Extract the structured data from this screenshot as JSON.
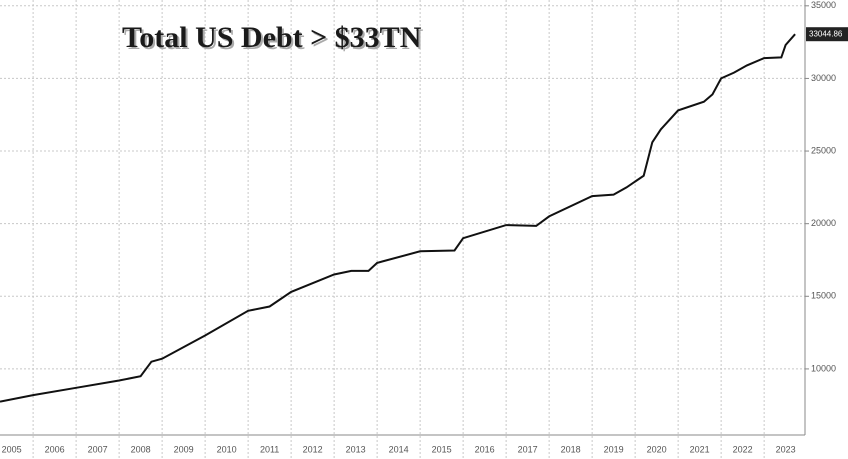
{
  "chart_data": {
    "type": "line",
    "title": "Total US Debt > $33TN",
    "x": [
      2005.23,
      2006.0,
      2007.0,
      2008.0,
      2008.5,
      2008.75,
      2009.0,
      2010.0,
      2011.0,
      2011.5,
      2012.0,
      2013.0,
      2013.4,
      2013.8,
      2014.0,
      2015.0,
      2015.8,
      2016.0,
      2017.0,
      2017.7,
      2018.0,
      2019.0,
      2019.5,
      2019.8,
      2020.2,
      2020.4,
      2020.6,
      2021.0,
      2021.6,
      2021.8,
      2022.0,
      2022.3,
      2022.6,
      2023.0,
      2023.4,
      2023.5,
      2023.72
    ],
    "values": [
      7750,
      8200,
      8700,
      9200,
      9500,
      10500,
      10700,
      12300,
      14000,
      14300,
      15300,
      16500,
      16750,
      16750,
      17300,
      18100,
      18150,
      19000,
      19900,
      19850,
      20500,
      21900,
      22000,
      22500,
      23300,
      25600,
      26500,
      27800,
      28400,
      28900,
      30000,
      30400,
      30900,
      31400,
      31450,
      32300,
      33044.86
    ],
    "color": "#111111",
    "xlim": [
      2005.23,
      2023.95
    ],
    "xticks": [
      {
        "value": 2005.5,
        "label": "2005"
      },
      {
        "value": 2006.5,
        "label": "2006"
      },
      {
        "value": 2007.5,
        "label": "2007"
      },
      {
        "value": 2008.5,
        "label": "2008"
      },
      {
        "value": 2009.5,
        "label": "2009"
      },
      {
        "value": 2010.5,
        "label": "2010"
      },
      {
        "value": 2011.5,
        "label": "2011"
      },
      {
        "value": 2012.5,
        "label": "2012"
      },
      {
        "value": 2013.5,
        "label": "2013"
      },
      {
        "value": 2014.5,
        "label": "2014"
      },
      {
        "value": 2015.5,
        "label": "2015"
      },
      {
        "value": 2016.5,
        "label": "2016"
      },
      {
        "value": 2017.5,
        "label": "2017"
      },
      {
        "value": 2018.5,
        "label": "2018"
      },
      {
        "value": 2019.5,
        "label": "2019"
      },
      {
        "value": 2020.5,
        "label": "2020"
      },
      {
        "value": 2021.5,
        "label": "2021"
      },
      {
        "value": 2022.5,
        "label": "2022"
      },
      {
        "value": 2023.5,
        "label": "2023"
      }
    ],
    "ylim": [
      5450,
      35400
    ],
    "yticks": [
      10000,
      15000,
      20000,
      25000,
      30000,
      35000
    ],
    "grid": true
  }
}
